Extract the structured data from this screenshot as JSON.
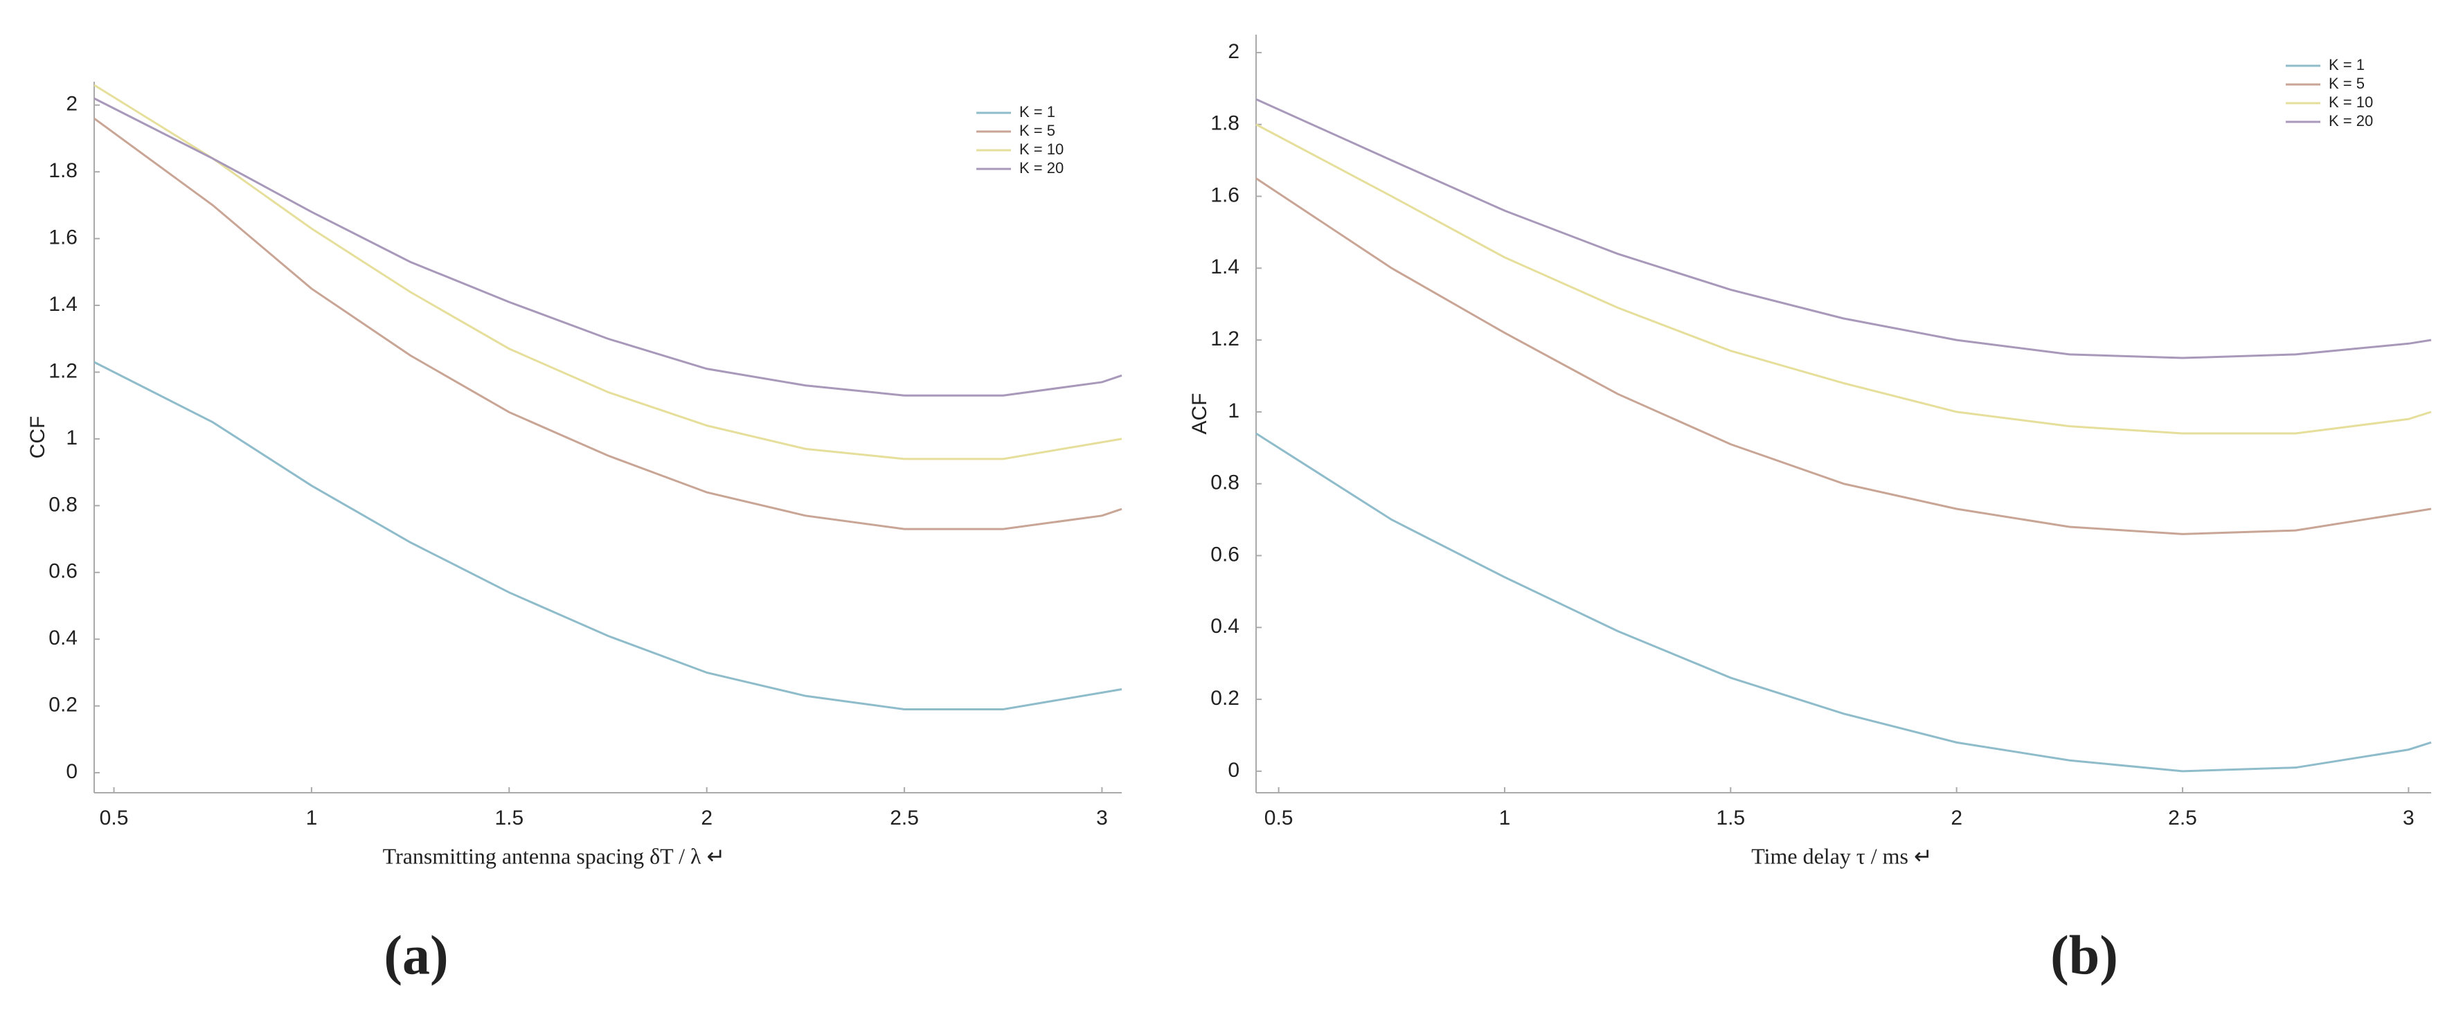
{
  "chart_data": [
    {
      "type": "line",
      "panel_label": "(a)",
      "xlabel": "Transmitting antenna spacing  δT / λ ↵",
      "ylabel": "CCF",
      "x": [
        0.45,
        0.75,
        1,
        1.25,
        1.5,
        1.75,
        2,
        2.25,
        2.5,
        2.75,
        3,
        3.05
      ],
      "series": [
        {
          "name": "K = 1",
          "color": "#8fbccb",
          "values": [
            1.23,
            1.05,
            0.86,
            0.69,
            0.54,
            0.41,
            0.3,
            0.23,
            0.19,
            0.19,
            0.24,
            0.25
          ]
        },
        {
          "name": "K = 5",
          "color": "#c9a596",
          "values": [
            1.96,
            1.7,
            1.45,
            1.25,
            1.08,
            0.95,
            0.84,
            0.77,
            0.73,
            0.73,
            0.77,
            0.79
          ]
        },
        {
          "name": "K = 10",
          "color": "#e6df9c",
          "values": [
            2.06,
            1.84,
            1.63,
            1.44,
            1.27,
            1.14,
            1.04,
            0.97,
            0.94,
            0.94,
            0.99,
            1.0
          ]
        },
        {
          "name": "K = 20",
          "color": "#a898ba",
          "values": [
            2.02,
            1.84,
            1.68,
            1.53,
            1.41,
            1.3,
            1.21,
            1.16,
            1.13,
            1.13,
            1.17,
            1.19
          ]
        }
      ],
      "xlim": [
        0.45,
        3.05
      ],
      "xticks": [
        0.5,
        1,
        1.5,
        2,
        2.5,
        3
      ],
      "ylim": [
        -0.06,
        2.07
      ],
      "yticks": [
        0,
        0.2,
        0.4,
        0.6,
        0.8,
        1,
        1.2,
        1.4,
        1.6,
        1.8,
        2
      ],
      "legend": "upper right"
    },
    {
      "type": "line",
      "panel_label": "(b)",
      "xlabel": "Time delay  τ / ms ↵",
      "ylabel": "ACF",
      "x": [
        0.45,
        0.75,
        1,
        1.25,
        1.5,
        1.75,
        2,
        2.25,
        2.5,
        2.75,
        3,
        3.05
      ],
      "series": [
        {
          "name": "K = 1",
          "color": "#8fbccb",
          "values": [
            0.94,
            0.7,
            0.54,
            0.39,
            0.26,
            0.16,
            0.08,
            0.03,
            0.0,
            0.01,
            0.06,
            0.08
          ]
        },
        {
          "name": "K = 5",
          "color": "#c9a596",
          "values": [
            1.65,
            1.4,
            1.22,
            1.05,
            0.91,
            0.8,
            0.73,
            0.68,
            0.66,
            0.67,
            0.72,
            0.73
          ]
        },
        {
          "name": "K = 10",
          "color": "#e6df9c",
          "values": [
            1.8,
            1.6,
            1.43,
            1.29,
            1.17,
            1.08,
            1.0,
            0.96,
            0.94,
            0.94,
            0.98,
            1.0
          ]
        },
        {
          "name": "K = 20",
          "color": "#a898ba",
          "values": [
            1.87,
            1.7,
            1.56,
            1.44,
            1.34,
            1.26,
            1.2,
            1.16,
            1.15,
            1.16,
            1.19,
            1.2
          ]
        }
      ],
      "xlim": [
        0.45,
        3.05
      ],
      "xticks": [
        0.5,
        1,
        1.5,
        2,
        2.5,
        3
      ],
      "ylim": [
        -0.06,
        2.05
      ],
      "yticks": [
        0,
        0.2,
        0.4,
        0.6,
        0.8,
        1,
        1.2,
        1.4,
        1.6,
        1.8,
        2
      ],
      "legend": "upper right"
    }
  ]
}
